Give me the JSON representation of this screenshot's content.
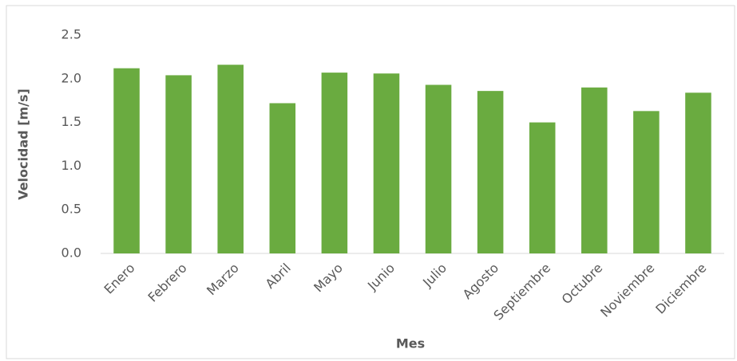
{
  "chart_data": {
    "type": "bar",
    "x_label": "Mes",
    "y_label": "Velocidad [m/s]",
    "categories": [
      "Enero",
      "Febrero",
      "Marzo",
      "Abril",
      "Mayo",
      "Junio",
      "Julio",
      "Agosto",
      "Septiembre",
      "Octubre",
      "Noviembre",
      "Diciembre"
    ],
    "values": [
      2.12,
      2.04,
      2.16,
      1.72,
      2.07,
      2.06,
      1.93,
      1.86,
      1.5,
      1.9,
      1.63,
      1.84
    ],
    "color": "#6aab40",
    "ylim": [
      0,
      2.5
    ],
    "yticks": [
      {
        "value": 0,
        "label": "0.0"
      },
      0.5,
      {
        "value": 1,
        "label": "1.0"
      },
      1.5,
      {
        "value": 2,
        "label": "2.0"
      },
      2.5
    ],
    "grid": false
  }
}
